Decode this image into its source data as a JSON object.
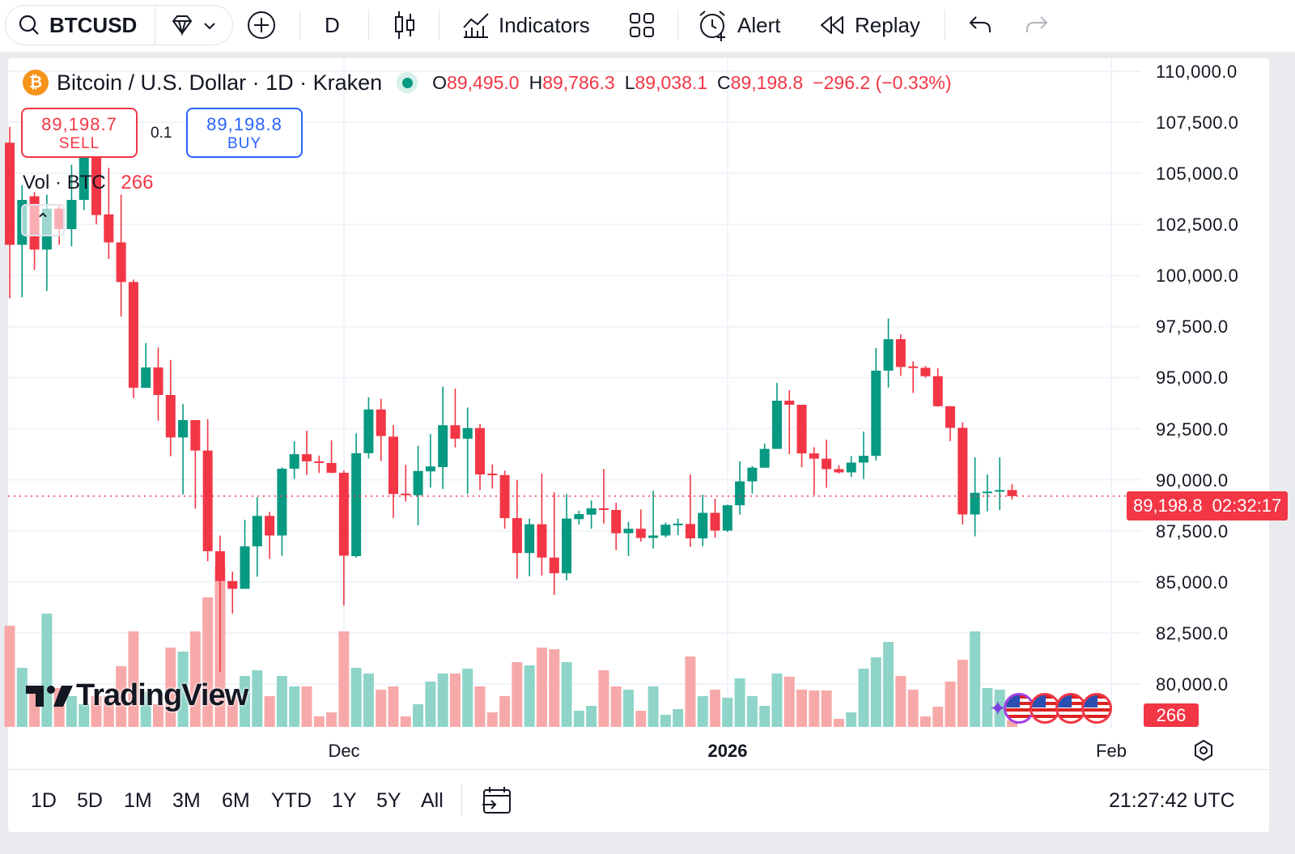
{
  "toolbar": {
    "symbol": "BTCUSD",
    "interval": "D",
    "indicators_label": "Indicators",
    "alert_label": "Alert",
    "replay_label": "Replay"
  },
  "legend": {
    "title": "Bitcoin / U.S. Dollar · 1D · Kraken",
    "o_label": "O",
    "o_value": "89,495.0",
    "h_label": "H",
    "h_value": "89,786.3",
    "l_label": "L",
    "l_value": "89,038.1",
    "c_label": "C",
    "c_value": "89,198.8",
    "change": "−296.2 (−0.33%)"
  },
  "trade": {
    "sell_price": "89,198.7",
    "sell_label": "SELL",
    "spread": "0.1",
    "buy_price": "89,198.8",
    "buy_label": "BUY"
  },
  "volume_legend": {
    "label": "Vol · BTC",
    "value": "266"
  },
  "logo_text": "TradingView",
  "price_axis": [
    "110,000.0",
    "107,500.0",
    "105,000.0",
    "102,500.0",
    "100,000.0",
    "97,500.0",
    "95,000.0",
    "92,500.0",
    "90,000.0",
    "87,500.0",
    "85,000.0",
    "82,500.0",
    "80,000.0"
  ],
  "current_price": {
    "value": "89,198.8",
    "countdown": "02:32:17"
  },
  "current_volume": "266",
  "time_axis": {
    "dec": "Dec",
    "year": "2026",
    "feb": "Feb"
  },
  "bottom_bar": {
    "ranges": [
      "1D",
      "5D",
      "1M",
      "3M",
      "6M",
      "YTD",
      "1Y",
      "5Y",
      "All"
    ],
    "clock": "21:27:42 UTC"
  },
  "colors": {
    "up": "#089981",
    "down": "#f23645",
    "up_vol": "#8fd4c8",
    "down_vol": "#f7a9a9",
    "buy": "#2962ff"
  },
  "chart_data": {
    "type": "candlestick",
    "title": "Bitcoin / U.S. Dollar · 1D · Kraken",
    "ylim": [
      78500,
      110500
    ],
    "y_ticks": [
      80000,
      82500,
      85000,
      87500,
      90000,
      92500,
      95000,
      97500,
      100000,
      102500,
      105000,
      107500,
      110000
    ],
    "x_ticks": [
      "Dec",
      "2026",
      "Feb"
    ],
    "current_price": 89198.8,
    "candles_ohlc": [
      [
        106500,
        107270,
        98885,
        101500
      ],
      [
        101500,
        104420,
        98930,
        103700
      ],
      [
        103880,
        104080,
        100270,
        101270
      ],
      [
        101270,
        103960,
        99240,
        103270
      ],
      [
        103270,
        103500,
        101500,
        102270
      ],
      [
        102270,
        105420,
        101420,
        103700
      ],
      [
        103700,
        106500,
        103200,
        105800
      ],
      [
        105800,
        106800,
        102500,
        102960
      ],
      [
        102990,
        105270,
        100810,
        101620
      ],
      [
        101620,
        103960,
        97990,
        99680
      ],
      [
        99680,
        99800,
        93990,
        94500
      ],
      [
        94500,
        96690,
        94500,
        95500
      ],
      [
        95500,
        96470,
        92890,
        94150
      ],
      [
        94150,
        95860,
        91150,
        92070
      ],
      [
        92070,
        93700,
        89280,
        92920
      ],
      [
        92920,
        92920,
        88580,
        91430
      ],
      [
        91430,
        92960,
        86010,
        86500
      ],
      [
        86500,
        87270,
        80600,
        85040
      ],
      [
        85040,
        85500,
        83450,
        84660
      ],
      [
        84660,
        88040,
        84660,
        86740
      ],
      [
        86740,
        89150,
        85250,
        88230
      ],
      [
        88230,
        88430,
        86120,
        87270
      ],
      [
        87270,
        90600,
        86270,
        90540
      ],
      [
        90540,
        91880,
        90040,
        91250
      ],
      [
        91250,
        92400,
        90230,
        90900
      ],
      [
        90900,
        91180,
        90330,
        90850
      ],
      [
        90820,
        91930,
        90320,
        90340
      ],
      [
        90340,
        90450,
        83850,
        86280
      ],
      [
        86260,
        92270,
        86180,
        91300
      ],
      [
        91300,
        94040,
        91040,
        93440
      ],
      [
        93440,
        93960,
        90920,
        92140
      ],
      [
        92110,
        92670,
        88120,
        89300
      ],
      [
        89320,
        90730,
        88940,
        89250
      ],
      [
        89240,
        91660,
        87770,
        90430
      ],
      [
        90410,
        92240,
        89620,
        90650
      ],
      [
        90620,
        94560,
        89550,
        92670
      ],
      [
        92670,
        94460,
        91580,
        92010
      ],
      [
        92010,
        93540,
        89300,
        92530
      ],
      [
        92530,
        92720,
        89490,
        90260
      ],
      [
        90300,
        90750,
        89570,
        90280
      ],
      [
        90230,
        90450,
        87600,
        88120
      ],
      [
        88120,
        90000,
        85160,
        86410
      ],
      [
        86410,
        88100,
        85270,
        87820
      ],
      [
        87820,
        90300,
        85310,
        86190
      ],
      [
        86190,
        89390,
        84360,
        85420
      ],
      [
        85420,
        89300,
        85080,
        88100
      ],
      [
        88070,
        88480,
        87810,
        88320
      ],
      [
        88290,
        88990,
        87600,
        88600
      ],
      [
        88600,
        90530,
        87850,
        88520
      ],
      [
        88520,
        88870,
        86560,
        87380
      ],
      [
        87380,
        87940,
        86260,
        87600
      ],
      [
        87600,
        88540,
        86970,
        87150
      ],
      [
        87150,
        89460,
        86630,
        87270
      ],
      [
        87270,
        87900,
        87180,
        87800
      ],
      [
        87850,
        88100,
        87280,
        87850
      ],
      [
        87830,
        90260,
        86710,
        87130
      ],
      [
        87130,
        89270,
        86740,
        88380
      ],
      [
        88380,
        89070,
        87160,
        87510
      ],
      [
        87510,
        88780,
        87450,
        88750
      ],
      [
        88750,
        90900,
        88300,
        89920
      ],
      [
        89920,
        90670,
        89320,
        90590
      ],
      [
        90590,
        91770,
        90590,
        91510
      ],
      [
        91510,
        94740,
        91510,
        93870
      ],
      [
        93870,
        94380,
        91250,
        93670
      ],
      [
        93670,
        93670,
        90610,
        91290
      ],
      [
        91290,
        91590,
        89250,
        91030
      ],
      [
        91030,
        91960,
        89610,
        90520
      ],
      [
        90520,
        90710,
        90300,
        90360
      ],
      [
        90360,
        91160,
        90130,
        90840
      ],
      [
        90840,
        92360,
        90030,
        91170
      ],
      [
        91170,
        96450,
        90940,
        95340
      ],
      [
        95340,
        97890,
        94510,
        96880
      ],
      [
        96880,
        97120,
        95090,
        95520
      ],
      [
        95550,
        95800,
        94250,
        95520
      ],
      [
        95480,
        95570,
        95000,
        95070
      ],
      [
        95070,
        95450,
        93570,
        93600
      ],
      [
        93600,
        93600,
        91890,
        92540
      ],
      [
        92540,
        92810,
        87810,
        88300
      ],
      [
        88300,
        91100,
        87230,
        89360
      ],
      [
        89360,
        90260,
        88450,
        89420
      ],
      [
        89420,
        91100,
        88520,
        89495
      ],
      [
        89495,
        89786.3,
        89038.1,
        89198.8
      ]
    ],
    "volumes": [
      4125,
      2409,
      1584,
      4620,
      1584,
      1254,
      924,
      1254,
      1254,
      2475,
      3894,
      1419,
      924,
      3234,
      3069,
      3894,
      5280,
      6534,
      1254,
      2079,
      2310,
      1254,
      2079,
      1650,
      1650,
      429,
      594,
      3894,
      2409,
      2178,
      1518,
      1650,
      429,
      924,
      1848,
      2178,
      2178,
      2376,
      1650,
      594,
      1254,
      2640,
      2508,
      3234,
      3168,
      2640,
      660,
      858,
      2310,
      1650,
      1518,
      660,
      1650,
      495,
      726,
      2871,
      1254,
      1518,
      1188,
      1980,
      1254,
      858,
      2178,
      2046,
      1518,
      1485,
      1485,
      330,
      594,
      2376,
      2838,
      3465,
      2079,
      1518,
      429,
      825,
      1848,
      2739,
      3894,
      1584,
      1518,
      266
    ]
  }
}
